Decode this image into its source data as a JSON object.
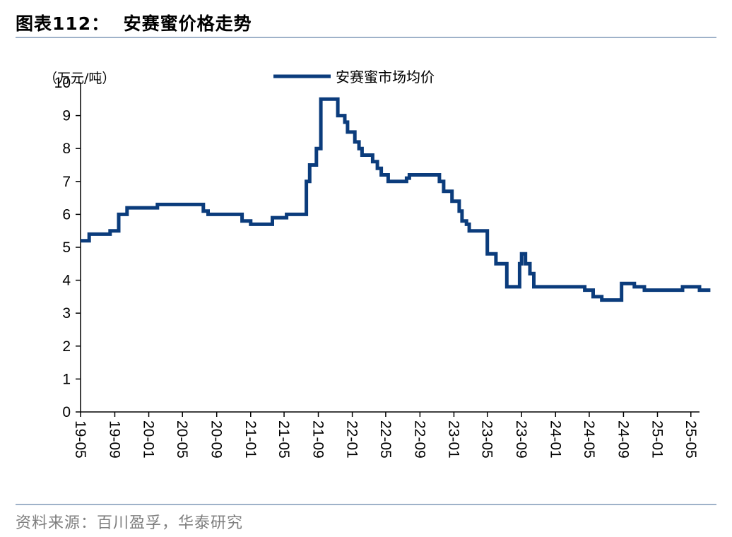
{
  "header": {
    "figure_title": "图表112：  安赛蜜价格走势"
  },
  "footer": {
    "source": "资料来源：百川盈孚，华泰研究"
  },
  "colors": {
    "series": "#0b3c7c",
    "rule": "#9fb2c9",
    "axis": "#000000"
  },
  "chart_data": {
    "type": "line",
    "title": "",
    "xlabel": "",
    "ylabel": "（万元/吨）",
    "ylim": [
      0,
      10
    ],
    "yticks": [
      0,
      1,
      2,
      3,
      4,
      5,
      6,
      7,
      8,
      9,
      10
    ],
    "xlim": [
      "2019-05",
      "2025-06"
    ],
    "xticks": [
      "19-05",
      "19-09",
      "20-01",
      "20-05",
      "20-09",
      "21-01",
      "21-05",
      "21-09",
      "22-01",
      "22-05",
      "22-09",
      "23-01",
      "23-05",
      "23-09",
      "24-01",
      "24-05",
      "24-09",
      "25-01",
      "25-05"
    ],
    "grid": false,
    "legend_position": "top-center",
    "series": [
      {
        "name": "安赛蜜市场均价",
        "step": true,
        "points": [
          [
            "2019-05-01",
            5.2
          ],
          [
            "2019-06-01",
            5.4
          ],
          [
            "2019-08-15",
            5.5
          ],
          [
            "2019-09-15",
            6.0
          ],
          [
            "2019-10-15",
            6.2
          ],
          [
            "2020-02-01",
            6.3
          ],
          [
            "2020-07-15",
            6.1
          ],
          [
            "2020-08-01",
            6.0
          ],
          [
            "2020-12-01",
            5.8
          ],
          [
            "2021-01-01",
            5.7
          ],
          [
            "2021-03-20",
            5.9
          ],
          [
            "2021-05-10",
            6.0
          ],
          [
            "2021-07-20",
            7.0
          ],
          [
            "2021-08-01",
            7.5
          ],
          [
            "2021-08-25",
            8.0
          ],
          [
            "2021-09-10",
            9.5
          ],
          [
            "2021-11-10",
            9.0
          ],
          [
            "2021-12-05",
            8.8
          ],
          [
            "2021-12-15",
            8.5
          ],
          [
            "2022-01-10",
            8.2
          ],
          [
            "2022-01-25",
            8.0
          ],
          [
            "2022-02-05",
            7.8
          ],
          [
            "2022-03-15",
            7.6
          ],
          [
            "2022-04-01",
            7.4
          ],
          [
            "2022-04-15",
            7.2
          ],
          [
            "2022-05-10",
            7.0
          ],
          [
            "2022-07-15",
            7.1
          ],
          [
            "2022-07-25",
            7.2
          ],
          [
            "2022-11-10",
            7.0
          ],
          [
            "2022-11-25",
            6.7
          ],
          [
            "2022-12-25",
            6.4
          ],
          [
            "2023-01-20",
            6.1
          ],
          [
            "2023-01-30",
            5.8
          ],
          [
            "2023-02-15",
            5.7
          ],
          [
            "2023-02-25",
            5.5
          ],
          [
            "2023-05-01",
            4.8
          ],
          [
            "2023-06-01",
            4.5
          ],
          [
            "2023-07-10",
            3.8
          ],
          [
            "2023-08-25",
            4.5
          ],
          [
            "2023-09-01",
            4.8
          ],
          [
            "2023-09-15",
            4.5
          ],
          [
            "2023-10-01",
            4.2
          ],
          [
            "2023-10-15",
            3.8
          ],
          [
            "2024-04-15",
            3.7
          ],
          [
            "2024-05-15",
            3.5
          ],
          [
            "2024-06-15",
            3.4
          ],
          [
            "2024-08-25",
            3.9
          ],
          [
            "2024-10-10",
            3.8
          ],
          [
            "2024-11-15",
            3.7
          ],
          [
            "2025-04-01",
            3.8
          ],
          [
            "2025-06-01",
            3.7
          ],
          [
            "2025-07-10",
            3.7
          ]
        ]
      }
    ]
  }
}
